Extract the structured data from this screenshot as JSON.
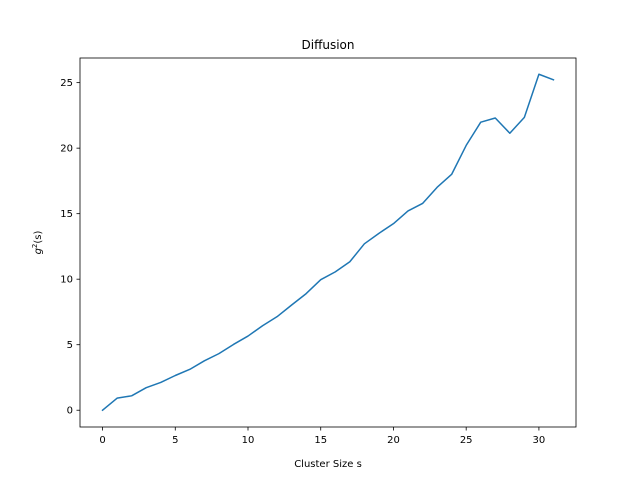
{
  "chart_data": {
    "type": "line",
    "title": "Diffusion",
    "xlabel": "Cluster Size s",
    "ylabel": "g²(s)",
    "ylabel_parts": {
      "base": "g",
      "sup": "2",
      "tail": "(s)"
    },
    "xlim": [
      -1.55,
      32.55
    ],
    "ylim": [
      -1.28,
      26.88
    ],
    "xticks": [
      0,
      5,
      10,
      15,
      20,
      25,
      30
    ],
    "yticks": [
      0,
      5,
      10,
      15,
      20,
      25
    ],
    "grid": false,
    "series": [
      {
        "color": "#1f77b4",
        "x": [
          0,
          1,
          2,
          3,
          4,
          5,
          6,
          7,
          8,
          9,
          10,
          11,
          12,
          13,
          14,
          15,
          16,
          17,
          18,
          19,
          20,
          21,
          22,
          23,
          24,
          25,
          26,
          27,
          28,
          29,
          30,
          31
        ],
        "y": [
          0.0,
          0.92,
          1.1,
          1.72,
          2.12,
          2.65,
          3.12,
          3.77,
          4.32,
          5.02,
          5.66,
          6.45,
          7.14,
          8.03,
          8.9,
          9.96,
          10.56,
          11.33,
          12.7,
          13.5,
          14.24,
          15.21,
          15.78,
          17.01,
          18.0,
          20.21,
          21.98,
          22.3,
          21.14,
          22.35,
          25.64,
          25.22
        ]
      }
    ]
  }
}
